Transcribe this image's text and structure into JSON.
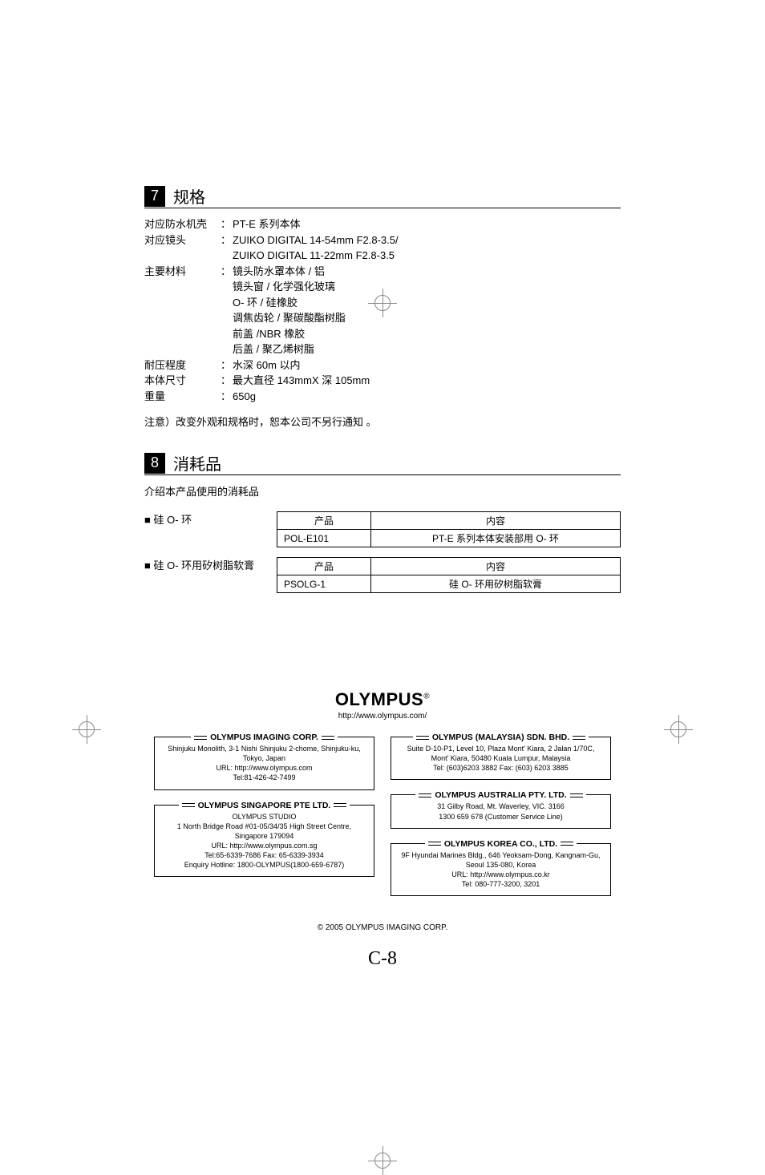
{
  "section7": {
    "num": "7",
    "title": "规格",
    "rows": [
      {
        "label": "对应防水机壳",
        "values": [
          "PT-E 系列本体"
        ]
      },
      {
        "label": "对应镜头",
        "values": [
          "ZUIKO DIGITAL 14-54mm F2.8-3.5/",
          "ZUIKO DIGITAL 11-22mm F2.8-3.5"
        ]
      },
      {
        "label": "主要材料",
        "values": [
          "镜头防水罩本体 / 铝",
          "镜头窗 / 化学强化玻璃",
          "O- 环 / 硅橡胶",
          "调焦齿轮 / 聚碳酸酯树脂",
          "前盖 /NBR 橡胶",
          "后盖 / 聚乙烯树脂"
        ]
      },
      {
        "label": "耐压程度",
        "values": [
          "水深 60m 以内"
        ]
      },
      {
        "label": "本体尺寸",
        "values": [
          "最大直径 143mmX 深 105mm"
        ]
      },
      {
        "label": "重量",
        "values": [
          "650g"
        ]
      }
    ],
    "note": "注意）改变外观和规格时，恕本公司不另行通知 。"
  },
  "section8": {
    "num": "8",
    "title": "消耗品",
    "intro": "介绍本产品使用的消耗品",
    "groups": [
      {
        "label": "■ 硅 O- 环",
        "head_product": "产品",
        "head_content": "内容",
        "product": "POL-E101",
        "content": "PT-E 系列本体安装部用 O- 环"
      },
      {
        "label": "■ 硅 O- 环用矽树脂软膏",
        "head_product": "产品",
        "head_content": "内容",
        "product": "PSOLG-1",
        "content": "硅 O- 环用矽树脂软膏"
      }
    ]
  },
  "footer": {
    "brand": "OLYMPUS",
    "brand_url": "http://www.olympus.com/",
    "offices_left": [
      {
        "name": "OLYMPUS IMAGING CORP.",
        "lines": [
          "Shinjuku Monolith, 3-1 Nishi Shinjuku 2-chome, Shinjuku-ku,",
          "Tokyo, Japan",
          "URL: http://www.olympus.com",
          "Tel:81-426-42-7499"
        ]
      },
      {
        "name": "OLYMPUS SINGAPORE PTE LTD.",
        "lines": [
          "OLYMPUS STUDIO",
          "1 North Bridge Road #01-05/34/35 High Street Centre,",
          "Singapore 179094",
          "URL: http://www.olympus.com.sg",
          "Tel:65-6339-7686 Fax: 65-6339-3934",
          "Enquiry Hotline: 1800-OLYMPUS(1800-659-6787)"
        ]
      }
    ],
    "offices_right": [
      {
        "name": "OLYMPUS (MALAYSIA) SDN. BHD.",
        "lines": [
          "Suite D-10-P1, Level 10, Plaza Mont' Kiara, 2 Jalan 1/70C,",
          "Mont' Kiara, 50480 Kuala Lumpur, Malaysia",
          "Tel: (603)6203 3882 Fax: (603) 6203 3885"
        ]
      },
      {
        "name": "OLYMPUS AUSTRALIA PTY. LTD.",
        "lines": [
          "31 Gilby Road, Mt. Waverley, VIC. 3166",
          "1300 659 678 (Customer Service Line)"
        ]
      },
      {
        "name": "OLYMPUS KOREA CO., LTD.",
        "lines": [
          "9F Hyundai Marines Bldg., 646 Yeoksam-Dong, Kangnam-Gu,",
          "Seoul 135-080, Korea",
          "URL: http://www.olympus.co.kr",
          "Tel: 080-777-3200, 3201"
        ]
      }
    ],
    "copyright": "© 2005 OLYMPUS IMAGING CORP.",
    "page_number": "C-8"
  },
  "colors": {
    "text": "#000000",
    "bg": "#ffffff",
    "mark": "#888888"
  }
}
